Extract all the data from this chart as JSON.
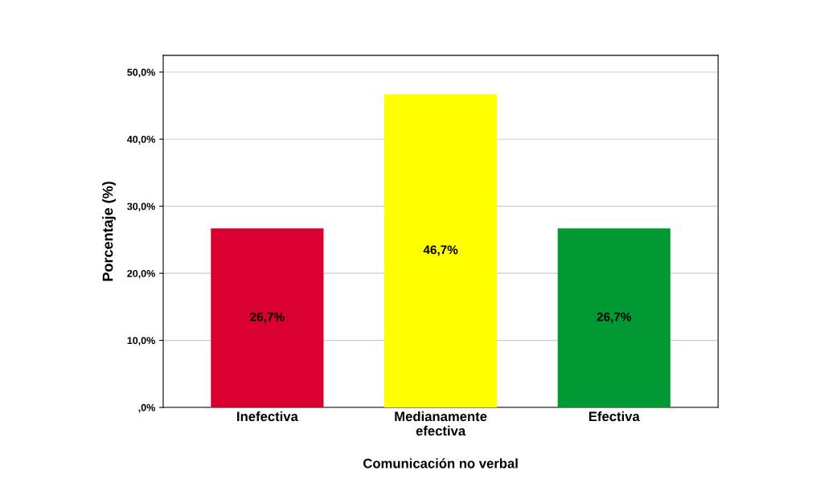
{
  "chart_data": {
    "type": "bar",
    "xlabel": "Comunicación no verbal",
    "ylabel": "Porcentaje (%)",
    "categories": [
      "Inefectiva",
      "Medianamente\nefectiva",
      "Efectiva"
    ],
    "values": [
      26.7,
      46.7,
      26.7
    ],
    "colors": [
      "#d7002e",
      "#ffff00",
      "#009933"
    ],
    "value_labels": [
      "26,7%",
      "46,7%",
      "26,7%"
    ],
    "ylim": [
      0,
      52.5
    ],
    "yticks": [
      {
        "value": 0,
        "label": ",0%"
      },
      {
        "value": 10,
        "label": "10,0%"
      },
      {
        "value": 20,
        "label": "20,0%"
      },
      {
        "value": 30,
        "label": "30,0%"
      },
      {
        "value": 40,
        "label": "40,0%"
      },
      {
        "value": 50,
        "label": "50,0%"
      }
    ],
    "grid": "y"
  }
}
